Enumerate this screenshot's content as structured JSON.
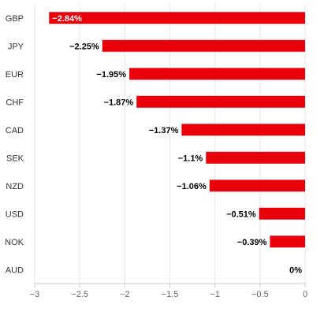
{
  "chart_data": {
    "type": "bar",
    "orientation": "horizontal",
    "categories": [
      "GBP",
      "JPY",
      "EUR",
      "CHF",
      "CAD",
      "SEK",
      "NZD",
      "USD",
      "NOK",
      "AUD"
    ],
    "values": [
      -2.84,
      -2.25,
      -1.95,
      -1.87,
      -1.37,
      -1.1,
      -1.06,
      -0.51,
      -0.39,
      0
    ],
    "data_labels": [
      "−2.84%",
      "−2.25%",
      "−1.95%",
      "−1.87%",
      "−1.37%",
      "−1.1%",
      "−1.06%",
      "−0.51%",
      "−0.39%",
      "0%"
    ],
    "xlim": [
      -3,
      0
    ],
    "x_ticks": [
      -3,
      -2.5,
      -2,
      -1.5,
      -1,
      -0.5,
      0
    ],
    "x_tick_labels": [
      "−3",
      "−2.5",
      "−2",
      "−1.5",
      "−1",
      "−0.5",
      "0"
    ],
    "grid": true,
    "bar_color": "#e8000b",
    "title": "",
    "xlabel": "",
    "ylabel": ""
  }
}
